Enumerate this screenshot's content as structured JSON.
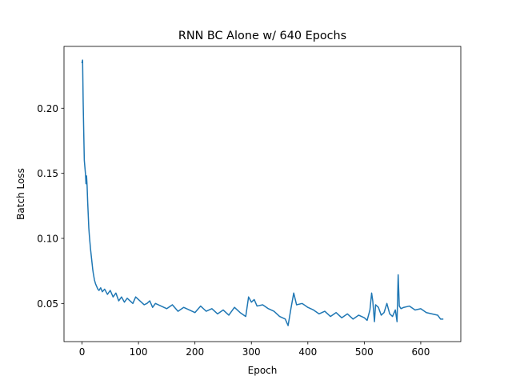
{
  "chart_data": {
    "type": "line",
    "title": "RNN BC Alone w/ 640 Epochs",
    "xlabel": "Epoch",
    "ylabel": "Batch Loss",
    "xlim": [
      -31.95,
      670.95
    ],
    "ylim": [
      0.0207,
      0.2475
    ],
    "xticks": [
      0,
      100,
      200,
      300,
      400,
      500,
      600
    ],
    "xtick_labels": [
      "0",
      "100",
      "200",
      "300",
      "400",
      "500",
      "600"
    ],
    "yticks": [
      0.05,
      0.1,
      0.15,
      0.2
    ],
    "ytick_labels": [
      "0.05",
      "0.10",
      "0.15",
      "0.20"
    ],
    "grid": false,
    "line_color": "#1f77b4",
    "series": [
      {
        "x": [
          0,
          1,
          2,
          3,
          4,
          5,
          6,
          7,
          8,
          9,
          10,
          11,
          12,
          13,
          14,
          15,
          16,
          17,
          18,
          19,
          20,
          22,
          24,
          26,
          28,
          30,
          33,
          36,
          40,
          45,
          50,
          55,
          60,
          65,
          70,
          75,
          80,
          85,
          90,
          95,
          100,
          105,
          110,
          115,
          120,
          125,
          130,
          140,
          150,
          160,
          170,
          180,
          190,
          200,
          210,
          220,
          230,
          240,
          250,
          260,
          270,
          280,
          290,
          295,
          300,
          305,
          310,
          320,
          330,
          340,
          350,
          360,
          365,
          370,
          375,
          380,
          390,
          400,
          410,
          420,
          430,
          440,
          450,
          460,
          470,
          480,
          490,
          500,
          505,
          510,
          513,
          515,
          518,
          520,
          525,
          530,
          535,
          540,
          545,
          550,
          555,
          558,
          560,
          562,
          565,
          570,
          580,
          590,
          600,
          610,
          620,
          630,
          635,
          639
        ],
        "y": [
          0.235,
          0.237,
          0.205,
          0.182,
          0.16,
          0.155,
          0.15,
          0.142,
          0.148,
          0.14,
          0.128,
          0.118,
          0.108,
          0.102,
          0.097,
          0.092,
          0.088,
          0.084,
          0.08,
          0.076,
          0.073,
          0.068,
          0.065,
          0.063,
          0.061,
          0.06,
          0.062,
          0.059,
          0.061,
          0.057,
          0.06,
          0.055,
          0.058,
          0.052,
          0.055,
          0.051,
          0.054,
          0.052,
          0.05,
          0.055,
          0.053,
          0.051,
          0.049,
          0.05,
          0.052,
          0.047,
          0.05,
          0.048,
          0.046,
          0.049,
          0.044,
          0.047,
          0.045,
          0.043,
          0.048,
          0.044,
          0.046,
          0.042,
          0.045,
          0.041,
          0.047,
          0.043,
          0.04,
          0.055,
          0.051,
          0.053,
          0.048,
          0.049,
          0.046,
          0.044,
          0.04,
          0.038,
          0.033,
          0.046,
          0.058,
          0.049,
          0.05,
          0.047,
          0.045,
          0.042,
          0.044,
          0.04,
          0.043,
          0.039,
          0.042,
          0.038,
          0.041,
          0.039,
          0.037,
          0.045,
          0.058,
          0.052,
          0.036,
          0.049,
          0.047,
          0.041,
          0.043,
          0.05,
          0.042,
          0.04,
          0.045,
          0.036,
          0.072,
          0.048,
          0.046,
          0.047,
          0.048,
          0.045,
          0.046,
          0.043,
          0.042,
          0.041,
          0.038,
          0.038
        ]
      }
    ]
  }
}
